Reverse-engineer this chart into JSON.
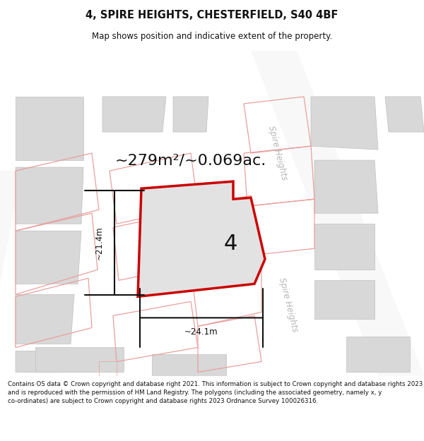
{
  "title": "4, SPIRE HEIGHTS, CHESTERFIELD, S40 4BF",
  "subtitle": "Map shows position and indicative extent of the property.",
  "area_text": "~279m²/~0.069ac.",
  "dim_width": "~24.1m",
  "dim_height": "~21.4m",
  "number_label": "4",
  "street_label": "Spire Heights",
  "footer": "Contains OS data © Crown copyright and database right 2021. This information is subject to Crown copyright and database rights 2023 and is reproduced with the permission of HM Land Registry. The polygons (including the associated geometry, namely x, y co-ordinates) are subject to Crown copyright and database rights 2023 Ordnance Survey 100026316.",
  "map_bg": "#ebebeb",
  "road_color": "#f8f8f8",
  "property_fill": "#e2e2e2",
  "property_edge": "#cc0000",
  "building_fill": "#d8d8d8",
  "building_edge": "#c0c0c0",
  "pink_color": "#e8a0a0",
  "gray_text": "#b8b8b8",
  "black_text": "#111111",
  "dim_arrow_color": "#111111",
  "header_bg": "#ffffff",
  "footer_bg": "#ffffff"
}
